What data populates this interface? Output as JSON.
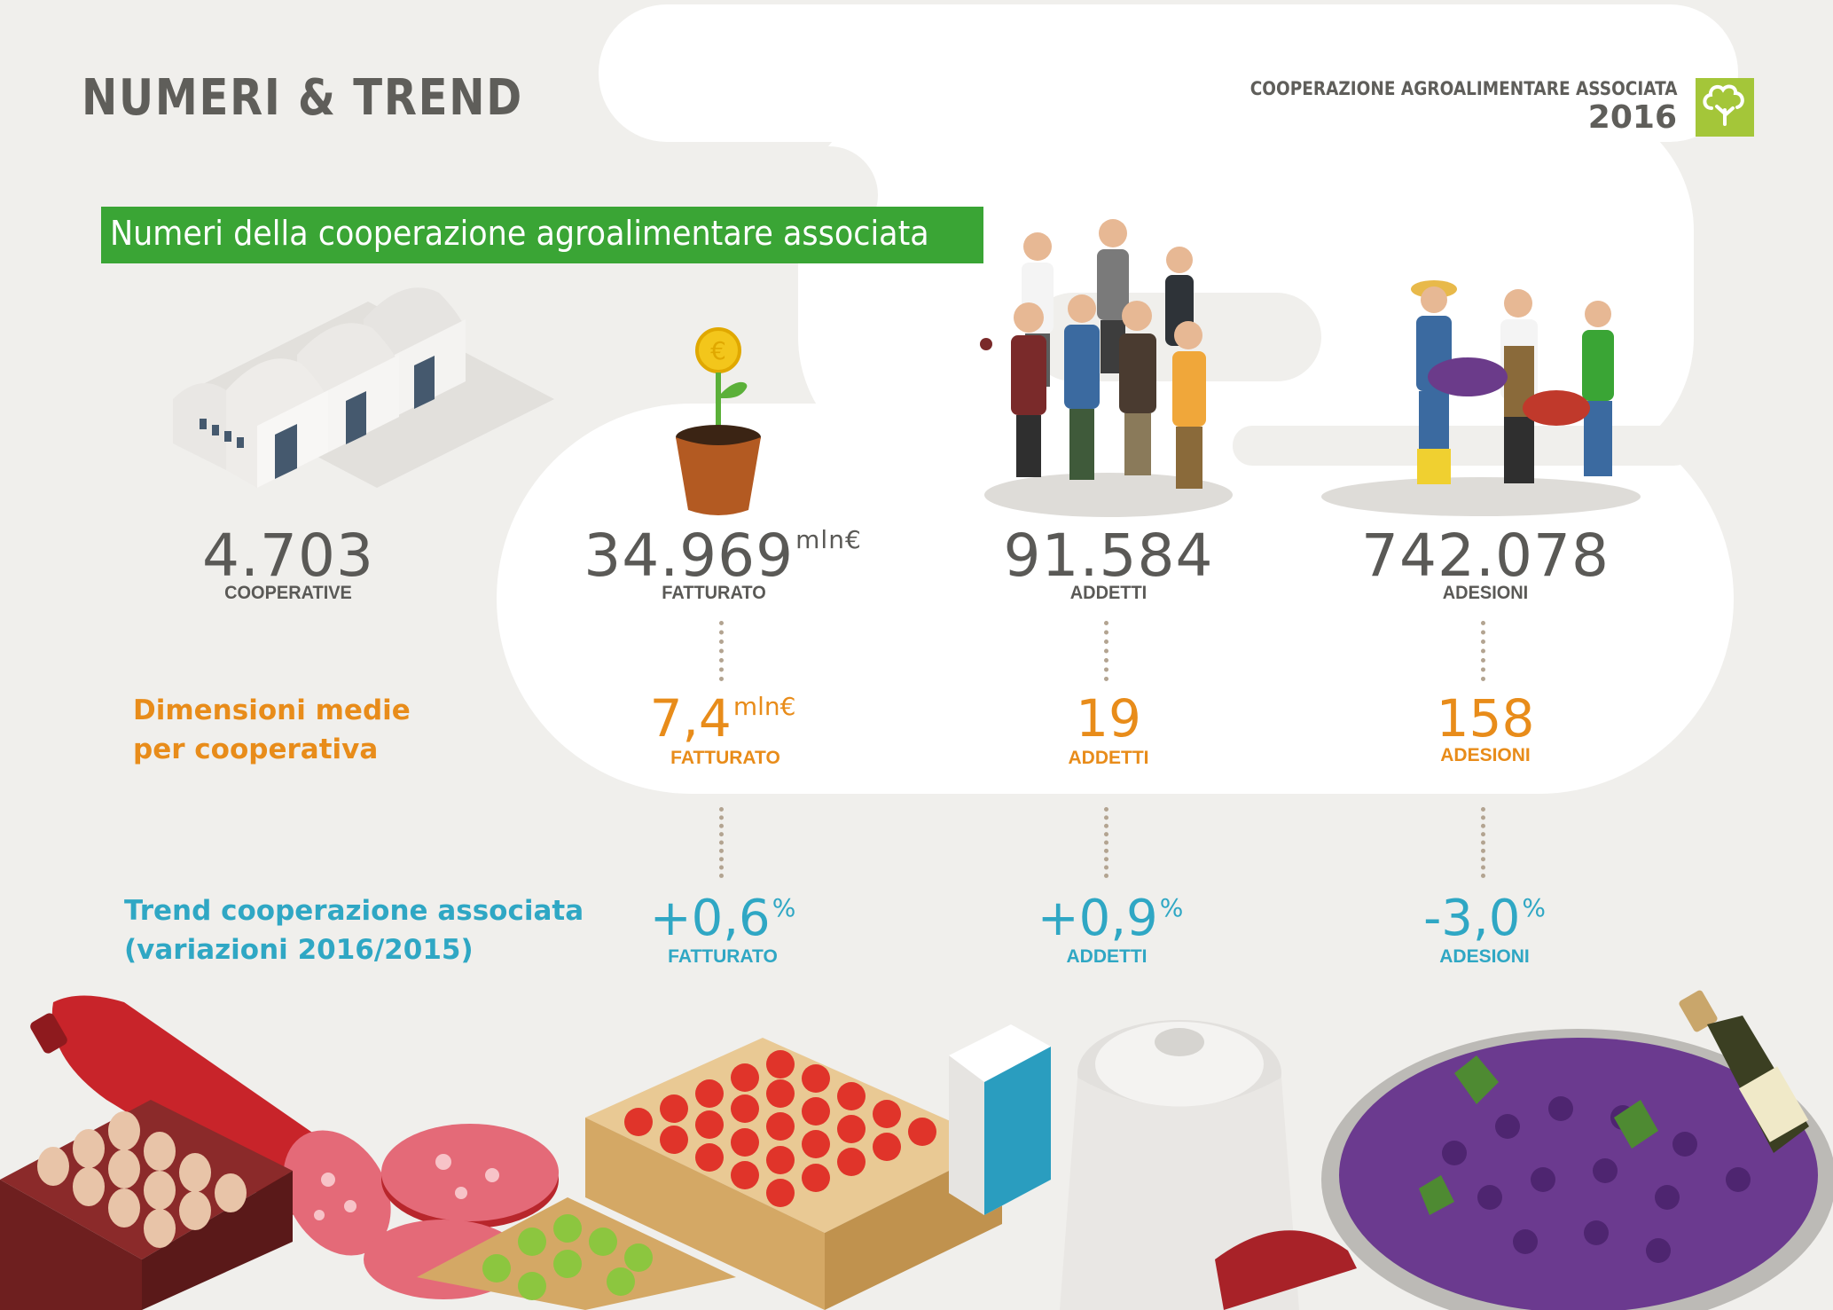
{
  "header": {
    "title": "NUMERI & TREND",
    "organization": "COOPERAZIONE AGROALIMENTARE ASSOCIATA",
    "year": "2016",
    "logo_icon": "tree-logo-icon"
  },
  "banner": {
    "text": "Numeri della cooperazione agroalimentare associata"
  },
  "totals": [
    {
      "value": "4.703",
      "unit": "",
      "label": "COOPERATIVE"
    },
    {
      "value": "34.969",
      "unit": "mln€",
      "label": "FATTURATO"
    },
    {
      "value": "91.584",
      "unit": "",
      "label": "ADDETTI"
    },
    {
      "value": "742.078",
      "unit": "",
      "label": "ADESIONI"
    }
  ],
  "averages": {
    "title_line1": "Dimensioni medie",
    "title_line2": "per cooperativa",
    "items": [
      {
        "value": "7,4",
        "unit": "mln€",
        "label": "FATTURATO"
      },
      {
        "value": "19",
        "unit": "",
        "label": "ADDETTI"
      },
      {
        "value": "158",
        "unit": "",
        "label": "ADESIONI"
      }
    ]
  },
  "trend": {
    "title_line1": "Trend cooperazione associata",
    "title_line2": "(variazioni 2016/2015)",
    "items": [
      {
        "value": "+0,6",
        "unit": "%",
        "label": "FATTURATO"
      },
      {
        "value": "+0,9",
        "unit": "%",
        "label": "ADDETTI"
      },
      {
        "value": "-3,0",
        "unit": "%",
        "label": "ADESIONI"
      }
    ]
  },
  "colors": {
    "background": "#f0efec",
    "cloud": "#ffffff",
    "text_gray": "#5a5956",
    "banner_green": "#3aa535",
    "logo_green": "#a4c639",
    "orange": "#e88c1a",
    "teal": "#2fa7c4"
  },
  "illustrations": [
    "warehouse-icon",
    "plant-coin-icon",
    "workers-group-icon",
    "farmers-harvest-icon",
    "food-products-icon"
  ]
}
